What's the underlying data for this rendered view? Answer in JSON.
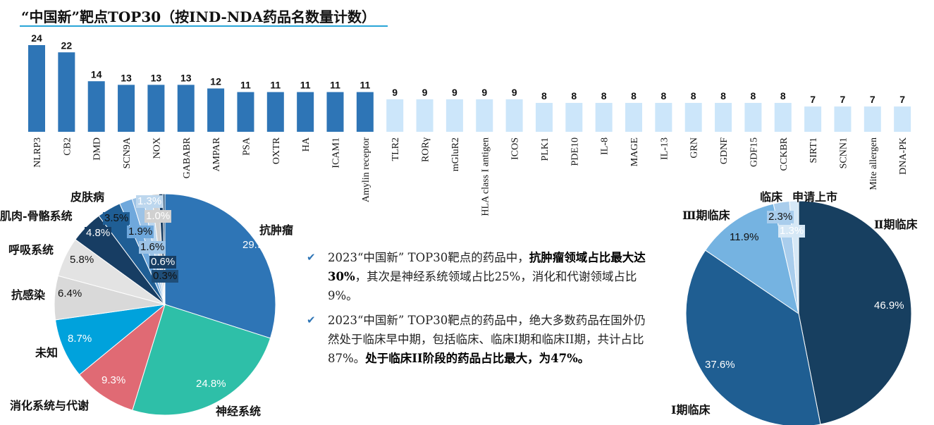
{
  "title": "“中国新”靶点TOP30（按IND-NDA药品名数量计数）",
  "colors": {
    "bar_dark": "#2e75b6",
    "bar_light": "#cce6fa",
    "title_line": "#2aa5d8"
  },
  "chart_data": [
    {
      "type": "bar",
      "title": "“中国新”靶点TOP30（按IND-NDA药品名数量计数）",
      "categories": [
        "NLRP3",
        "CB2",
        "DMD",
        "SCN9A",
        "NOX",
        "GABABR",
        "AMPAR",
        "PSA",
        "OXTR",
        "HA",
        "ICAM1",
        "Amylin receptor",
        "TLR2",
        "RORγ",
        "mGluR2",
        "HLA class I antigen",
        "ICOS",
        "PLK1",
        "PDE10",
        "IL-8",
        "MAGE",
        "IL-13",
        "GRN",
        "GDNF",
        "GDF15",
        "CCKBR",
        "SIRT1",
        "SCNN1",
        "Mite allergen",
        "DNA-PK"
      ],
      "values": [
        24,
        22,
        14,
        13,
        13,
        13,
        12,
        11,
        11,
        11,
        11,
        11,
        9,
        9,
        9,
        9,
        9,
        8,
        8,
        8,
        8,
        8,
        8,
        8,
        8,
        8,
        7,
        7,
        7,
        7
      ],
      "highlight_count": 12,
      "data_labels": true,
      "ylim": [
        0,
        24
      ],
      "grid": false
    },
    {
      "type": "pie",
      "start": "top",
      "direction": "clockwise",
      "slices": [
        {
          "label": "抗肿瘤",
          "value": 29.9,
          "text": "29.9%",
          "color": "#2e75b6"
        },
        {
          "label": "神经系统",
          "value": 24.8,
          "text": "24.8%",
          "color": "#2ebfa8"
        },
        {
          "label": "消化系统与代谢",
          "value": 9.3,
          "text": "9.3%",
          "color": "#e06a74"
        },
        {
          "label": "未知",
          "value": 8.7,
          "text": "8.7%",
          "color": "#00a2dc"
        },
        {
          "label": "抗感染",
          "value": 6.4,
          "text": "6.4%",
          "color": "#d9d9d9"
        },
        {
          "label": "呼吸系统",
          "value": 5.8,
          "text": "5.8%",
          "color": "#e3e3e3"
        },
        {
          "label": "肌肉-骨骼系统",
          "value": 4.8,
          "text": "4.8%",
          "color": "#173d63"
        },
        {
          "label": "皮肤病",
          "value": 3.5,
          "text": "3.5%",
          "color": "#1f5e95"
        },
        {
          "label": "",
          "value": 1.9,
          "text": "1.9%",
          "color": "#6fa8dc"
        },
        {
          "label": "",
          "value": 1.6,
          "text": "1.6%",
          "color": "#9dc3e6"
        },
        {
          "label": "",
          "value": 1.3,
          "text": "1.3%",
          "color": "#bdd7ee"
        },
        {
          "label": "",
          "value": 1.0,
          "text": "1.0%",
          "color": "#d0d0d0"
        },
        {
          "label": "",
          "value": 0.6,
          "text": "0.6%",
          "color": "#173d63"
        },
        {
          "label": "",
          "value": 0.3,
          "text": "0.3%",
          "color": "#1f4e79"
        }
      ]
    },
    {
      "type": "pie",
      "start": "top",
      "direction": "clockwise",
      "slices": [
        {
          "label": "Ⅱ期临床",
          "value": 46.9,
          "text": "46.9%",
          "color": "#173f60"
        },
        {
          "label": "Ⅰ期临床",
          "value": 37.6,
          "text": "37.6%",
          "color": "#1f5e92"
        },
        {
          "label": "Ⅲ期临床",
          "value": 11.9,
          "text": "11.9%",
          "color": "#75b3e1"
        },
        {
          "label": "临床",
          "value": 2.3,
          "text": "2.3%",
          "color": "#a9cdec"
        },
        {
          "label": "申请上市",
          "value": 1.3,
          "text": "1.3%",
          "color": "#d6e8f6"
        }
      ]
    }
  ],
  "notes": [
    [
      {
        "t": "2023“中国新” TOP30靶点的药品中，",
        "b": false
      },
      {
        "t": "抗肿瘤领域占比最大达30%",
        "b": true
      },
      {
        "t": "，其次是神经系统领域占比25%，消化和代谢领域占比9%。",
        "b": false
      }
    ],
    [
      {
        "t": "2023“中国新” TOP30靶点的药品中，绝大多数药品在国外仍然处于临床早中期，包括临床、临床I期和临床II期，共计占比87%。",
        "b": false
      },
      {
        "t": "处于临床II阶段的药品占比最大，为47%。",
        "b": true
      }
    ]
  ]
}
